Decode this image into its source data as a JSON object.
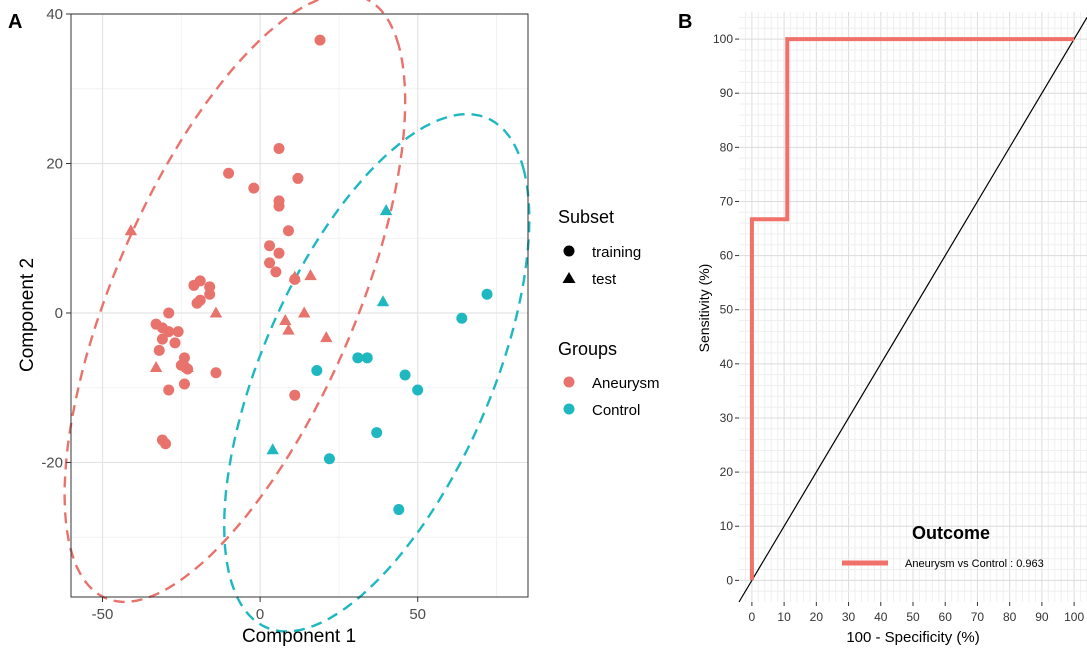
{
  "chart_data": [
    {
      "panel_label": "A",
      "type": "scatter",
      "xlabel": "Component 1",
      "ylabel": "Component 2",
      "xlim": [
        -60,
        85
      ],
      "ylim": [
        -38,
        40
      ],
      "xticks": [
        -50,
        0,
        50
      ],
      "yticks": [
        -20,
        0,
        20,
        40
      ],
      "grid": true,
      "legend": {
        "placement": "right",
        "shape_title": "Subset",
        "shape_items": [
          {
            "label": "training",
            "shape": "circle"
          },
          {
            "label": "test",
            "shape": "triangle"
          }
        ],
        "color_title": "Groups",
        "color_items": [
          {
            "label": "Aneurysm",
            "color": "#e8736c"
          },
          {
            "label": "Control",
            "color": "#1fb8c1"
          }
        ]
      },
      "series": [
        {
          "name": "Aneurysm",
          "color": "#e8736c",
          "training": [
            [
              19,
              36.5
            ],
            [
              6,
              22
            ],
            [
              -10,
              18.7
            ],
            [
              12,
              18
            ],
            [
              -2,
              16.7
            ],
            [
              6,
              15
            ],
            [
              6,
              14.3
            ],
            [
              9,
              11
            ],
            [
              3,
              9
            ],
            [
              6,
              8
            ],
            [
              -19,
              4.3
            ],
            [
              -16,
              3.5
            ],
            [
              -21,
              3.7
            ],
            [
              -16,
              2.5
            ],
            [
              -19,
              1.7
            ],
            [
              -20,
              1.3
            ],
            [
              3,
              6.7
            ],
            [
              5,
              5.5
            ],
            [
              11,
              4.5
            ],
            [
              -29,
              0
            ],
            [
              -33,
              -1.5
            ],
            [
              -31,
              -2
            ],
            [
              -29,
              -2.5
            ],
            [
              -26,
              -2.5
            ],
            [
              -31,
              -3.5
            ],
            [
              -27,
              -4
            ],
            [
              -32,
              -5
            ],
            [
              -24,
              -6
            ],
            [
              -25,
              -7
            ],
            [
              -23,
              -7.5
            ],
            [
              -14,
              -8
            ],
            [
              -24,
              -9.5
            ],
            [
              -29,
              -10.3
            ],
            [
              11,
              -11
            ],
            [
              -31,
              -17
            ],
            [
              -30,
              -17.5
            ]
          ],
          "test": [
            [
              -41,
              11
            ],
            [
              11,
              4.8
            ],
            [
              16,
              5
            ],
            [
              -14,
              0
            ],
            [
              14,
              0
            ],
            [
              8,
              -1
            ],
            [
              9,
              -2.3
            ],
            [
              21,
              -3.3
            ],
            [
              -33,
              -7.3
            ],
            [
              -23,
              -7.3
            ]
          ]
        },
        {
          "name": "Control",
          "color": "#1fb8c1",
          "training": [
            [
              72,
              2.5
            ],
            [
              64,
              -0.7
            ],
            [
              31,
              -6
            ],
            [
              34,
              -6
            ],
            [
              18,
              -7.7
            ],
            [
              46,
              -8.3
            ],
            [
              50,
              -10.3
            ],
            [
              37,
              -16
            ],
            [
              22,
              -19.5
            ],
            [
              44,
              -26.3
            ]
          ],
          "test": [
            [
              40,
              13.7
            ],
            [
              39,
              1.5
            ],
            [
              4,
              -18.3
            ]
          ]
        }
      ],
      "ellipses": [
        {
          "group": "Aneurysm",
          "color": "#e8736c",
          "center": [
            -8,
            2
          ],
          "rx": 62,
          "ry": 27,
          "angle_deg": 33
        },
        {
          "group": "Control",
          "color": "#1fb8c1",
          "center": [
            37,
            -8
          ],
          "rx": 54,
          "ry": 25,
          "angle_deg": 30
        }
      ]
    },
    {
      "panel_label": "B",
      "type": "line",
      "xlabel": "100 - Specificity (%)",
      "ylabel": "Sensitivity (%)",
      "xlim": [
        -4,
        104
      ],
      "ylim": [
        -4,
        105
      ],
      "xticks": [
        0,
        10,
        20,
        30,
        40,
        50,
        60,
        70,
        80,
        90,
        100
      ],
      "yticks": [
        0,
        10,
        20,
        30,
        40,
        50,
        60,
        70,
        80,
        90,
        100
      ],
      "grid": true,
      "series": [
        {
          "name": "Aneurysm vs Control : 0.963",
          "color": "#f0706a",
          "x": [
            0,
            0,
            0,
            11,
            11,
            100
          ],
          "y": [
            0,
            66.7,
            66.7,
            66.7,
            100,
            100
          ]
        }
      ],
      "reference_line": {
        "color": "#000000",
        "from": [
          -4,
          -4
        ],
        "to": [
          104,
          104
        ]
      },
      "legend": {
        "title": "Outcome",
        "placement": "bottom-right"
      }
    }
  ]
}
